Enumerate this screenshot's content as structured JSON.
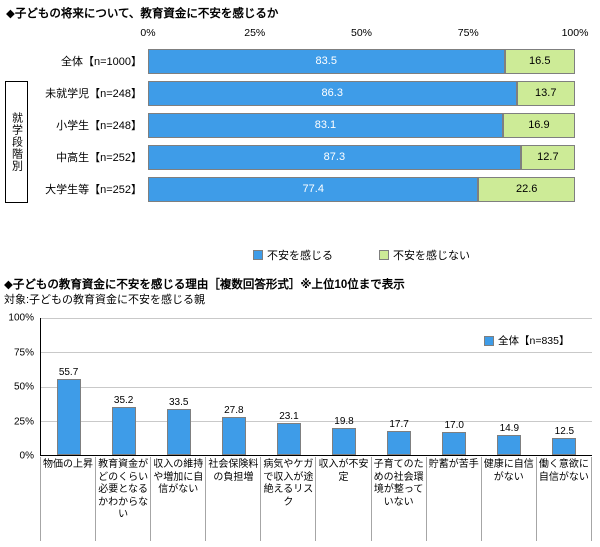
{
  "colors": {
    "blue": "#3E9CE8",
    "green": "#CDEB97",
    "grid": "#C9C9C9"
  },
  "chart_data": [
    {
      "type": "bar",
      "orientation": "horizontal",
      "stacked": true,
      "title": "◆子どもの将来について、教育資金に不安を感じるか",
      "group_label": "就学段階別",
      "categories": [
        "全体【n=1000】",
        "未就学児【n=248】",
        "小学生【n=248】",
        "中高生【n=252】",
        "大学生等【n=252】"
      ],
      "series": [
        {
          "name": "不安を感じる",
          "color": "#3E9CE8",
          "values": [
            83.5,
            86.3,
            83.1,
            87.3,
            77.4
          ]
        },
        {
          "name": "不安を感じない",
          "color": "#CDEB97",
          "values": [
            16.5,
            13.7,
            16.9,
            12.7,
            22.6
          ]
        }
      ],
      "x_ticks": [
        "0%",
        "25%",
        "50%",
        "75%",
        "100%"
      ],
      "xlim": [
        0,
        100
      ],
      "legend_position": "bottom"
    },
    {
      "type": "bar",
      "orientation": "vertical",
      "title": "◆子どもの教育資金に不安を感じる理由［複数回答形式］※上位10位まで表示",
      "subtitle": "対象:子どもの教育資金に不安を感じる親",
      "legend": "全体【n=835】",
      "categories": [
        "物価の上昇",
        "教育資金がどのくらい必要となるかわからない",
        "収入の維持や増加に自信がない",
        "社会保険料の負担増",
        "病気やケガで収入が途絶えるリスク",
        "収入が不安定",
        "子育てのための社会環境が整っていない",
        "貯蓄が苦手",
        "健康に自信がない",
        "働く意欲に自信がない"
      ],
      "values": [
        55.7,
        35.2,
        33.5,
        27.8,
        23.1,
        19.8,
        17.7,
        17.0,
        14.9,
        12.5
      ],
      "y_ticks": [
        "0%",
        "25%",
        "50%",
        "75%",
        "100%"
      ],
      "ylim": [
        0,
        100
      ],
      "grid": true,
      "bar_color": "#3E9CE8"
    }
  ]
}
